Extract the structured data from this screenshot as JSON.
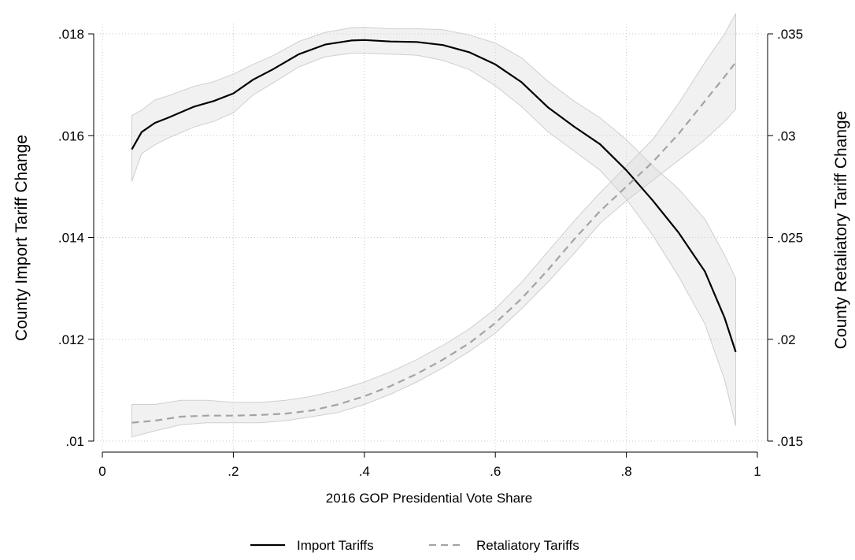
{
  "chart_data": {
    "type": "line",
    "xlabel": "2016 GOP Presidential Vote Share",
    "ylabel_left": "County Import Tariff Change",
    "ylabel_right": "County Retaliatory Tariff Change",
    "xlim": [
      0,
      1
    ],
    "ylim_left": [
      0.01,
      0.018
    ],
    "ylim_right": [
      0.015,
      0.035
    ],
    "x_ticks": [
      0,
      0.2,
      0.4,
      0.6,
      0.8,
      1
    ],
    "x_tick_labels": [
      "0",
      ".2",
      ".4",
      ".6",
      ".8",
      "1"
    ],
    "y_left_ticks": [
      0.01,
      0.012,
      0.014,
      0.016,
      0.018
    ],
    "y_left_tick_labels": [
      ".01",
      ".012",
      ".014",
      ".016",
      ".018"
    ],
    "y_right_ticks": [
      0.015,
      0.02,
      0.025,
      0.03,
      0.035
    ],
    "y_right_tick_labels": [
      ".015",
      ".02",
      ".025",
      ".03",
      ".035"
    ],
    "grid": true,
    "legend_position": "bottom",
    "series": [
      {
        "name": "Import Tariffs",
        "axis": "left",
        "style": "solid",
        "color": "#000000",
        "x": [
          0.045,
          0.06,
          0.08,
          0.1,
          0.14,
          0.17,
          0.2,
          0.23,
          0.26,
          0.3,
          0.34,
          0.38,
          0.4,
          0.44,
          0.48,
          0.52,
          0.56,
          0.6,
          0.64,
          0.68,
          0.72,
          0.76,
          0.8,
          0.84,
          0.88,
          0.92,
          0.95,
          0.967
        ],
        "y": [
          0.01573,
          0.01607,
          0.01625,
          0.01635,
          0.01657,
          0.01668,
          0.01683,
          0.0171,
          0.0173,
          0.0176,
          0.01779,
          0.01787,
          0.01788,
          0.01785,
          0.01784,
          0.01778,
          0.01764,
          0.0174,
          0.01705,
          0.01656,
          0.01618,
          0.01583,
          0.01532,
          0.01473,
          0.01409,
          0.01333,
          0.01242,
          0.01175
        ],
        "lower": [
          0.0151,
          0.01565,
          0.01582,
          0.01595,
          0.01617,
          0.01628,
          0.01645,
          0.0168,
          0.01703,
          0.01735,
          0.01755,
          0.01762,
          0.01762,
          0.0176,
          0.01758,
          0.01748,
          0.0173,
          0.01698,
          0.01657,
          0.01608,
          0.0157,
          0.01532,
          0.01475,
          0.01405,
          0.01323,
          0.0123,
          0.0112,
          0.0103
        ],
        "upper": [
          0.0164,
          0.0165,
          0.0167,
          0.01678,
          0.01697,
          0.01706,
          0.01721,
          0.0174,
          0.01757,
          0.01785,
          0.01803,
          0.01812,
          0.01813,
          0.0181,
          0.0181,
          0.01808,
          0.01798,
          0.01782,
          0.01753,
          0.01707,
          0.01668,
          0.01635,
          0.01592,
          0.01541,
          0.01495,
          0.01436,
          0.01365,
          0.0132
        ]
      },
      {
        "name": "Retaliatory Tariffs",
        "axis": "right",
        "style": "dashed",
        "color": "#a3a3a3",
        "x": [
          0.045,
          0.08,
          0.12,
          0.16,
          0.2,
          0.24,
          0.28,
          0.32,
          0.36,
          0.4,
          0.44,
          0.48,
          0.52,
          0.56,
          0.6,
          0.64,
          0.68,
          0.72,
          0.76,
          0.8,
          0.84,
          0.88,
          0.92,
          0.95,
          0.967
        ],
        "y": [
          0.0159,
          0.016,
          0.0162,
          0.01625,
          0.01625,
          0.01628,
          0.01635,
          0.0165,
          0.0168,
          0.0172,
          0.0177,
          0.0183,
          0.019,
          0.0198,
          0.0208,
          0.022,
          0.0234,
          0.0249,
          0.0263,
          0.0275,
          0.0287,
          0.0301,
          0.0317,
          0.0329,
          0.0336
        ],
        "lower": [
          0.0152,
          0.0155,
          0.0158,
          0.0159,
          0.0159,
          0.0159,
          0.016,
          0.0162,
          0.0164,
          0.0168,
          0.0173,
          0.0179,
          0.0186,
          0.0194,
          0.0203,
          0.0215,
          0.0228,
          0.0242,
          0.0257,
          0.0268,
          0.0278,
          0.0288,
          0.0298,
          0.0307,
          0.0313
        ],
        "upper": [
          0.0168,
          0.0168,
          0.017,
          0.017,
          0.0169,
          0.0169,
          0.017,
          0.0172,
          0.0175,
          0.0179,
          0.0184,
          0.019,
          0.0197,
          0.0205,
          0.0215,
          0.0228,
          0.0243,
          0.0258,
          0.0272,
          0.0285,
          0.0298,
          0.0316,
          0.0336,
          0.035,
          0.036
        ]
      }
    ]
  }
}
